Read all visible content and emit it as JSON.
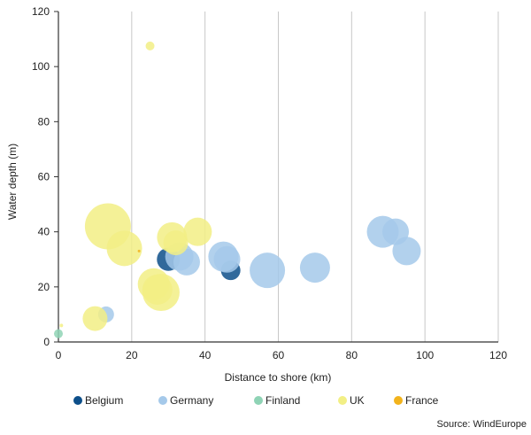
{
  "chart_data": {
    "type": "scatter",
    "title": "",
    "xlabel": "Distance to shore (km)",
    "ylabel": "Water depth (m)",
    "xlim": [
      0,
      120
    ],
    "ylim": [
      0,
      120
    ],
    "xticks": [
      0,
      20,
      40,
      60,
      80,
      100,
      120
    ],
    "yticks": [
      0,
      20,
      40,
      60,
      80,
      100,
      120
    ],
    "grid": "vertical",
    "legend_position": "bottom",
    "series": [
      {
        "name": "Belgium",
        "color": "#0d4f8a",
        "points": [
          {
            "x": 30,
            "y": 30,
            "size": 13
          },
          {
            "x": 47,
            "y": 26,
            "size": 11
          }
        ]
      },
      {
        "name": "Germany",
        "color": "#a5c9ea",
        "points": [
          {
            "x": 13,
            "y": 10,
            "size": 9
          },
          {
            "x": 33,
            "y": 31,
            "size": 16
          },
          {
            "x": 35,
            "y": 29,
            "size": 15
          },
          {
            "x": 45,
            "y": 31,
            "size": 17
          },
          {
            "x": 46,
            "y": 30,
            "size": 15
          },
          {
            "x": 57,
            "y": 26,
            "size": 20
          },
          {
            "x": 70,
            "y": 27,
            "size": 17
          },
          {
            "x": 88.5,
            "y": 40,
            "size": 18
          },
          {
            "x": 92,
            "y": 40,
            "size": 15
          },
          {
            "x": 95,
            "y": 33,
            "size": 16
          }
        ]
      },
      {
        "name": "Finland",
        "color": "#8fd3b5",
        "points": [
          {
            "x": 0,
            "y": 3,
            "size": 5
          }
        ]
      },
      {
        "name": "UK",
        "color": "#f2ef85",
        "points": [
          {
            "x": 0.8,
            "y": 6,
            "size": 2
          },
          {
            "x": 10,
            "y": 8.5,
            "size": 14
          },
          {
            "x": 13.5,
            "y": 42,
            "size": 26
          },
          {
            "x": 18,
            "y": 34,
            "size": 20
          },
          {
            "x": 25,
            "y": 107.5,
            "size": 5
          },
          {
            "x": 26,
            "y": 21,
            "size": 18
          },
          {
            "x": 27,
            "y": 19,
            "size": 17
          },
          {
            "x": 28,
            "y": 18,
            "size": 21
          },
          {
            "x": 31,
            "y": 38,
            "size": 17
          },
          {
            "x": 32,
            "y": 36,
            "size": 14
          },
          {
            "x": 38,
            "y": 40,
            "size": 16
          }
        ]
      },
      {
        "name": "France",
        "color": "#f2b31c",
        "points": [
          {
            "x": 22,
            "y": 33,
            "size": 1.5
          }
        ]
      }
    ],
    "source": "Source: WindEurope"
  }
}
